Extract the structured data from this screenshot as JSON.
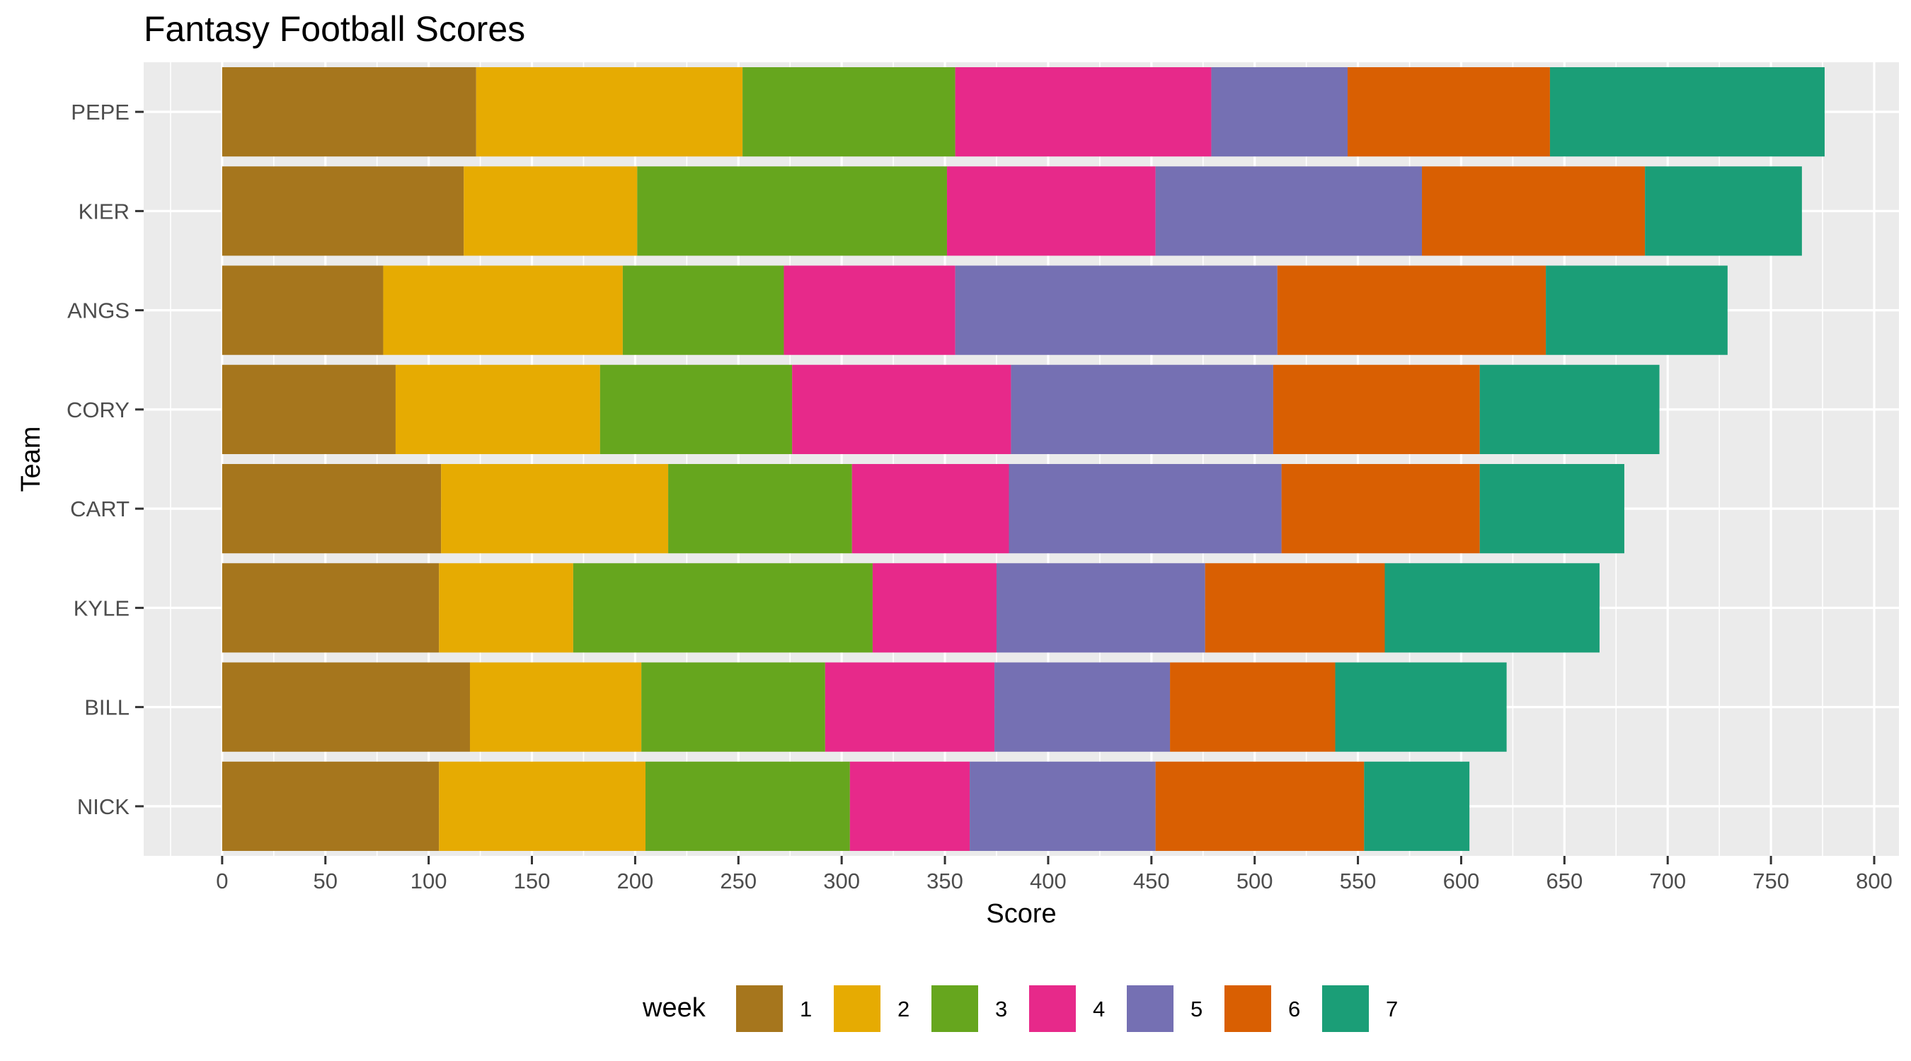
{
  "chart_data": {
    "type": "bar",
    "orientation": "horizontal",
    "stacked": true,
    "title": "Fantasy Football Scores",
    "xlabel": "Score",
    "ylabel": "Team",
    "xlim": [
      -38,
      812
    ],
    "xticks": [
      0,
      50,
      100,
      150,
      200,
      250,
      300,
      350,
      400,
      450,
      500,
      550,
      600,
      650,
      700,
      750,
      800
    ],
    "grid": true,
    "legend": {
      "title": "week",
      "position": "bottom"
    },
    "categories": [
      "PEPE",
      "KIER",
      "ANGS",
      "CORY",
      "CART",
      "KYLE",
      "BILL",
      "NICK"
    ],
    "series": [
      {
        "name": "1",
        "color": "#A6761D",
        "values": [
          123,
          117,
          78,
          84,
          106,
          105,
          120,
          105
        ]
      },
      {
        "name": "2",
        "color": "#E6AB02",
        "values": [
          129,
          84,
          116,
          99,
          110,
          65,
          83,
          100
        ]
      },
      {
        "name": "3",
        "color": "#66A61E",
        "values": [
          103,
          150,
          78,
          93,
          89,
          145,
          89,
          99
        ]
      },
      {
        "name": "4",
        "color": "#E7298A",
        "values": [
          124,
          101,
          83,
          106,
          76,
          60,
          82,
          58
        ]
      },
      {
        "name": "5",
        "color": "#7570B3",
        "values": [
          66,
          129,
          156,
          127,
          132,
          101,
          85,
          90
        ]
      },
      {
        "name": "6",
        "color": "#D95F02",
        "values": [
          98,
          108,
          130,
          100,
          96,
          87,
          80,
          101
        ]
      },
      {
        "name": "7",
        "color": "#1B9E77",
        "values": [
          133,
          76,
          88,
          87,
          70,
          104,
          83,
          51
        ]
      }
    ]
  }
}
